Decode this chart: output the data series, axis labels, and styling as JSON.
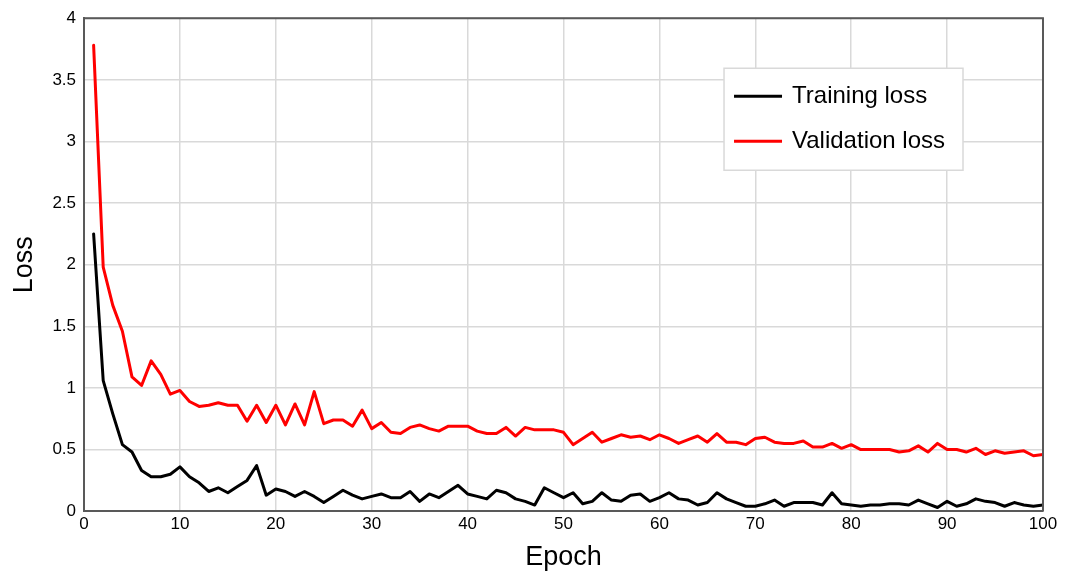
{
  "chart_data": {
    "type": "line",
    "xlabel": "Epoch",
    "ylabel": "Loss",
    "x": [
      1,
      2,
      3,
      4,
      5,
      6,
      7,
      8,
      9,
      10,
      11,
      12,
      13,
      14,
      15,
      16,
      17,
      18,
      19,
      20,
      21,
      22,
      23,
      24,
      25,
      26,
      27,
      28,
      29,
      30,
      31,
      32,
      33,
      34,
      35,
      36,
      37,
      38,
      39,
      40,
      41,
      42,
      43,
      44,
      45,
      46,
      47,
      48,
      49,
      50,
      51,
      52,
      53,
      54,
      55,
      56,
      57,
      58,
      59,
      60,
      61,
      62,
      63,
      64,
      65,
      66,
      67,
      68,
      69,
      70,
      71,
      72,
      73,
      74,
      75,
      76,
      77,
      78,
      79,
      80,
      81,
      82,
      83,
      84,
      85,
      86,
      87,
      88,
      89,
      90,
      91,
      92,
      93,
      94,
      95,
      96,
      97,
      98,
      99,
      100
    ],
    "series": [
      {
        "name": "Training loss",
        "color": "#000000",
        "values": [
          2.25,
          1.06,
          0.79,
          0.54,
          0.48,
          0.33,
          0.28,
          0.28,
          0.3,
          0.36,
          0.28,
          0.23,
          0.16,
          0.19,
          0.15,
          0.2,
          0.25,
          0.37,
          0.13,
          0.18,
          0.16,
          0.12,
          0.16,
          0.12,
          0.07,
          0.12,
          0.17,
          0.13,
          0.1,
          0.12,
          0.14,
          0.11,
          0.11,
          0.16,
          0.08,
          0.14,
          0.11,
          0.16,
          0.21,
          0.14,
          0.12,
          0.1,
          0.17,
          0.15,
          0.1,
          0.08,
          0.05,
          0.19,
          0.15,
          0.11,
          0.15,
          0.06,
          0.08,
          0.15,
          0.09,
          0.08,
          0.13,
          0.14,
          0.08,
          0.11,
          0.15,
          0.1,
          0.09,
          0.05,
          0.07,
          0.15,
          0.1,
          0.07,
          0.04,
          0.04,
          0.06,
          0.09,
          0.04,
          0.07,
          0.07,
          0.07,
          0.05,
          0.15,
          0.06,
          0.05,
          0.04,
          0.05,
          0.05,
          0.06,
          0.06,
          0.05,
          0.09,
          0.06,
          0.03,
          0.08,
          0.04,
          0.06,
          0.1,
          0.08,
          0.07,
          0.04,
          0.07,
          0.05,
          0.04,
          0.05
        ]
      },
      {
        "name": "Validation loss",
        "color": "#ff0000",
        "values": [
          3.78,
          1.98,
          1.67,
          1.46,
          1.09,
          1.02,
          1.22,
          1.11,
          0.95,
          0.98,
          0.89,
          0.85,
          0.86,
          0.88,
          0.86,
          0.86,
          0.73,
          0.86,
          0.72,
          0.86,
          0.7,
          0.87,
          0.7,
          0.97,
          0.71,
          0.74,
          0.74,
          0.69,
          0.82,
          0.67,
          0.72,
          0.64,
          0.63,
          0.68,
          0.7,
          0.67,
          0.65,
          0.69,
          0.69,
          0.69,
          0.65,
          0.63,
          0.63,
          0.68,
          0.61,
          0.68,
          0.66,
          0.66,
          0.66,
          0.64,
          0.54,
          0.59,
          0.64,
          0.56,
          0.59,
          0.62,
          0.6,
          0.61,
          0.58,
          0.62,
          0.59,
          0.55,
          0.58,
          0.61,
          0.56,
          0.63,
          0.56,
          0.56,
          0.54,
          0.59,
          0.6,
          0.56,
          0.55,
          0.55,
          0.57,
          0.52,
          0.52,
          0.55,
          0.51,
          0.54,
          0.5,
          0.5,
          0.5,
          0.5,
          0.48,
          0.49,
          0.53,
          0.48,
          0.55,
          0.5,
          0.5,
          0.48,
          0.51,
          0.46,
          0.49,
          0.47,
          0.48,
          0.49,
          0.45,
          0.46
        ]
      }
    ],
    "xlim": [
      0,
      100
    ],
    "xticks": [
      0,
      10,
      20,
      30,
      40,
      50,
      60,
      70,
      80,
      90,
      100
    ],
    "ylim": [
      0,
      4
    ],
    "yticks": [
      0,
      0.5,
      1,
      1.5,
      2,
      2.5,
      3,
      3.5,
      4
    ],
    "grid": true,
    "legend": "top right",
    "marker": "none",
    "line_style": "solid"
  }
}
